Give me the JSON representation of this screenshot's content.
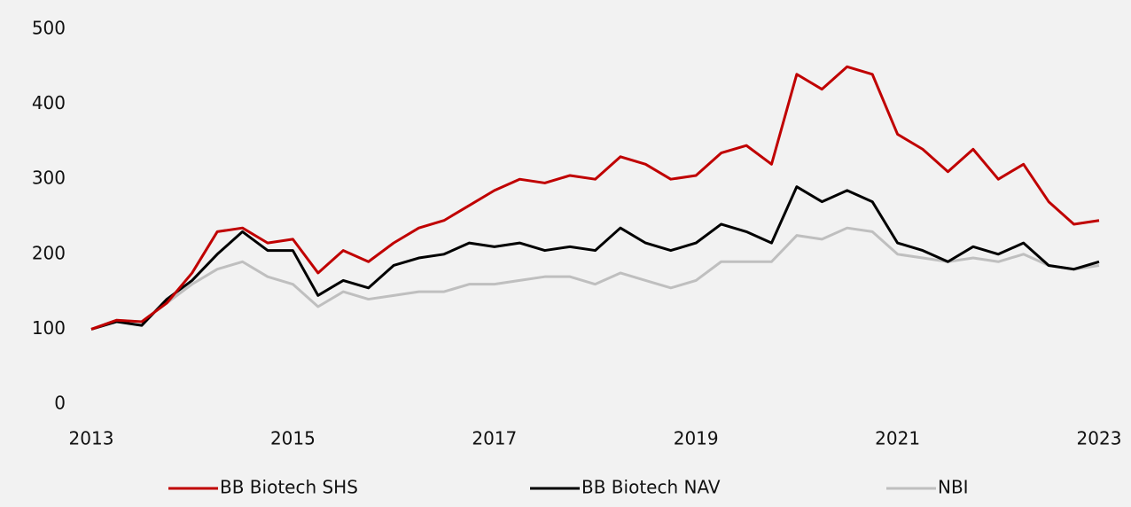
{
  "chart_data": {
    "type": "line",
    "x": [
      2013,
      2013.25,
      2013.5,
      2013.75,
      2014,
      2014.25,
      2014.5,
      2014.75,
      2015,
      2015.25,
      2015.5,
      2015.75,
      2016,
      2016.25,
      2016.5,
      2016.75,
      2017,
      2017.25,
      2017.5,
      2017.75,
      2018,
      2018.25,
      2018.5,
      2018.75,
      2019,
      2019.25,
      2019.5,
      2019.75,
      2020,
      2020.25,
      2020.5,
      2020.75,
      2021,
      2021.25,
      2021.5,
      2021.75,
      2022,
      2022.25,
      2022.5,
      2022.75,
      2023
    ],
    "series": [
      {
        "name": "BB Biotech SHS",
        "color": "#c00000",
        "values": [
          100,
          112,
          110,
          135,
          175,
          230,
          235,
          215,
          220,
          175,
          205,
          190,
          215,
          235,
          245,
          265,
          285,
          300,
          295,
          305,
          300,
          330,
          320,
          300,
          305,
          335,
          345,
          320,
          440,
          420,
          450,
          440,
          360,
          340,
          310,
          340,
          300,
          320,
          270,
          240,
          245
        ]
      },
      {
        "name": "BB Biotech NAV",
        "color": "#000000",
        "values": [
          100,
          110,
          105,
          140,
          165,
          200,
          230,
          205,
          205,
          145,
          165,
          155,
          185,
          195,
          200,
          215,
          210,
          215,
          205,
          210,
          205,
          235,
          215,
          205,
          215,
          240,
          230,
          215,
          290,
          270,
          285,
          270,
          215,
          205,
          190,
          210,
          200,
          215,
          185,
          180,
          190
        ]
      },
      {
        "name": "NBI",
        "color": "#bfbfbf",
        "values": [
          100,
          112,
          110,
          135,
          160,
          180,
          190,
          170,
          160,
          130,
          150,
          140,
          145,
          150,
          150,
          160,
          160,
          165,
          170,
          170,
          160,
          175,
          165,
          155,
          165,
          190,
          190,
          190,
          225,
          220,
          235,
          230,
          200,
          195,
          190,
          195,
          190,
          200,
          185,
          180,
          185
        ]
      }
    ],
    "xlim": [
      2013,
      2023
    ],
    "xticks": [
      2013,
      2015,
      2017,
      2019,
      2021,
      2023
    ],
    "ylim": [
      0,
      500
    ],
    "yticks": [
      0,
      100,
      200,
      300,
      400,
      500
    ],
    "legend": "bottom"
  }
}
